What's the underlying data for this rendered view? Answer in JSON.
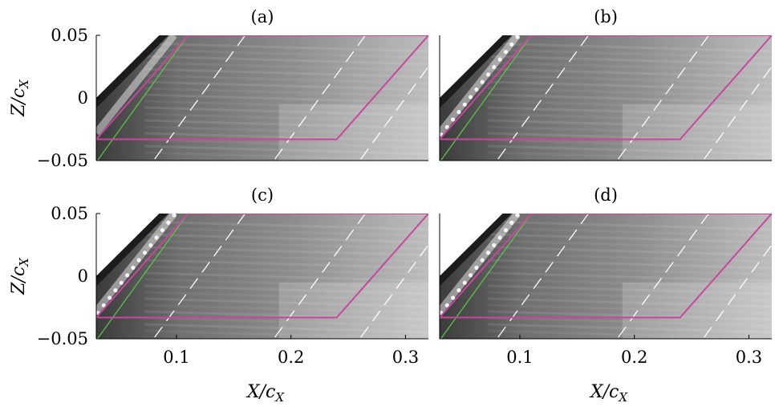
{
  "figure": {
    "panels": [
      {
        "label": "(a)",
        "show_xticks": false,
        "show_yticks": true
      },
      {
        "label": "(b)",
        "show_xticks": false,
        "show_yticks": false
      },
      {
        "label": "(c)",
        "show_xticks": true,
        "show_yticks": true
      },
      {
        "label": "(d)",
        "show_xticks": true,
        "show_yticks": false
      }
    ],
    "y_tick_labels": [
      "0.05",
      "0",
      "−0.05"
    ],
    "x_tick_labels": [
      "0.1",
      "0.2",
      "0.3"
    ],
    "y_axis_label": "Z/c",
    "y_axis_label_sub": "X",
    "x_axis_label": "X/c",
    "x_axis_label_sub": "X",
    "colors": {
      "outline": "#c8479e",
      "leading_line": "#5cc24a",
      "dashed": "#ffffff",
      "image_dark": "#2a2a2a",
      "image_light": "#e8e8e8"
    }
  },
  "chart_data": {
    "type": "image-panels",
    "xlim": [
      0.03,
      0.32
    ],
    "ylim": [
      -0.05,
      0.05
    ],
    "xticks": [
      0.1,
      0.2,
      0.3
    ],
    "yticks": [
      0.05,
      0,
      -0.05
    ],
    "region_outline": [
      [
        0.11,
        0.05
      ],
      [
        0.32,
        0.05
      ],
      [
        0.24,
        -0.033
      ],
      [
        0.03,
        -0.033
      ]
    ]
  }
}
